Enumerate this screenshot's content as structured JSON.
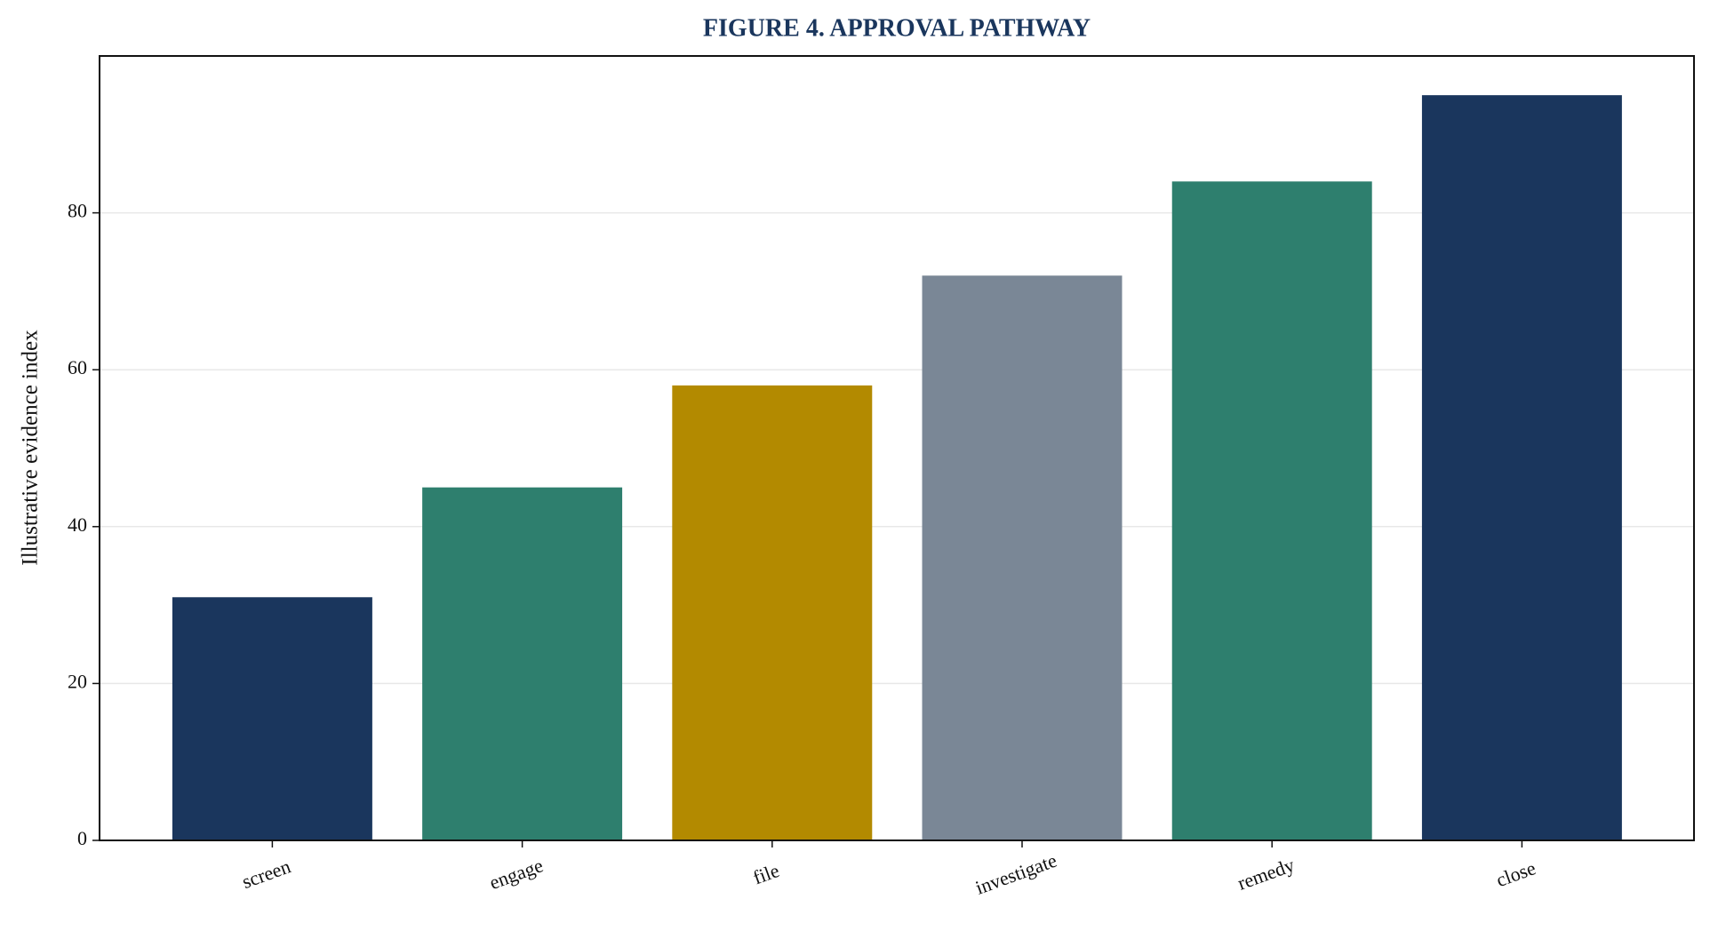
{
  "chart_data": {
    "type": "bar",
    "title": "FIGURE 4. APPROVAL PATHWAY",
    "y_label": "Illustrative evidence index",
    "categories": [
      "screen",
      "engage",
      "file",
      "investigate",
      "remedy",
      "close"
    ],
    "values": [
      31,
      45,
      58,
      72,
      84,
      95
    ],
    "colors": [
      "#1a365d",
      "#2e7f6e",
      "#b38a00",
      "#7a8796",
      "#2e7f6e",
      "#1a365d"
    ],
    "ylim": [
      0,
      100
    ],
    "yticks": [
      0,
      20,
      40,
      60,
      80
    ],
    "grid": true
  }
}
